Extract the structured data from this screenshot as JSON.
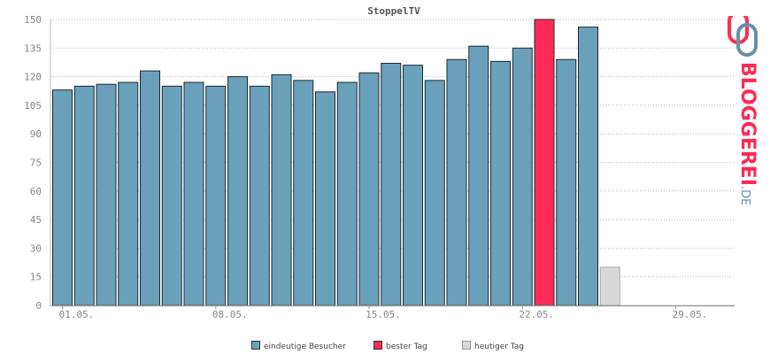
{
  "chart_data": {
    "type": "bar",
    "title": "StoppelTV",
    "x": [
      1,
      2,
      3,
      4,
      5,
      6,
      7,
      8,
      9,
      10,
      11,
      12,
      13,
      14,
      15,
      16,
      17,
      18,
      19,
      20,
      21,
      22,
      23,
      24,
      25
    ],
    "values": [
      113,
      115,
      116,
      117,
      123,
      115,
      117,
      115,
      120,
      115,
      121,
      118,
      112,
      117,
      122,
      127,
      126,
      118,
      129,
      136,
      128,
      135,
      150,
      129,
      146
    ],
    "series_kind": [
      "normal",
      "normal",
      "normal",
      "normal",
      "normal",
      "normal",
      "normal",
      "normal",
      "normal",
      "normal",
      "normal",
      "normal",
      "normal",
      "normal",
      "normal",
      "normal",
      "normal",
      "normal",
      "normal",
      "normal",
      "normal",
      "normal",
      "best",
      "normal",
      "normal"
    ],
    "today": {
      "x": 26,
      "value": 20
    },
    "x_range": [
      1,
      31
    ],
    "ylim": [
      0,
      150
    ],
    "y_ticks": [
      0,
      15,
      30,
      45,
      60,
      75,
      90,
      105,
      120,
      135,
      150
    ],
    "x_ticks": [
      {
        "x": 1,
        "label": "01.05."
      },
      {
        "x": 8,
        "label": "08.05."
      },
      {
        "x": 15,
        "label": "15.05."
      },
      {
        "x": 22,
        "label": "22.05."
      },
      {
        "x": 29,
        "label": "29.05."
      }
    ],
    "grid": true,
    "legend_position": "bottom",
    "colors": {
      "normal": "#6aa0ba",
      "best": "#ff2a55",
      "today": "#d8d8d8"
    }
  },
  "legend": {
    "visitors_label": "eindeutige Besucher",
    "best_label": "bester Tag",
    "today_label": "heutiger Tag"
  },
  "logo": {
    "text_main": "BLOGGEREI",
    "text_suffix": ".DE"
  }
}
